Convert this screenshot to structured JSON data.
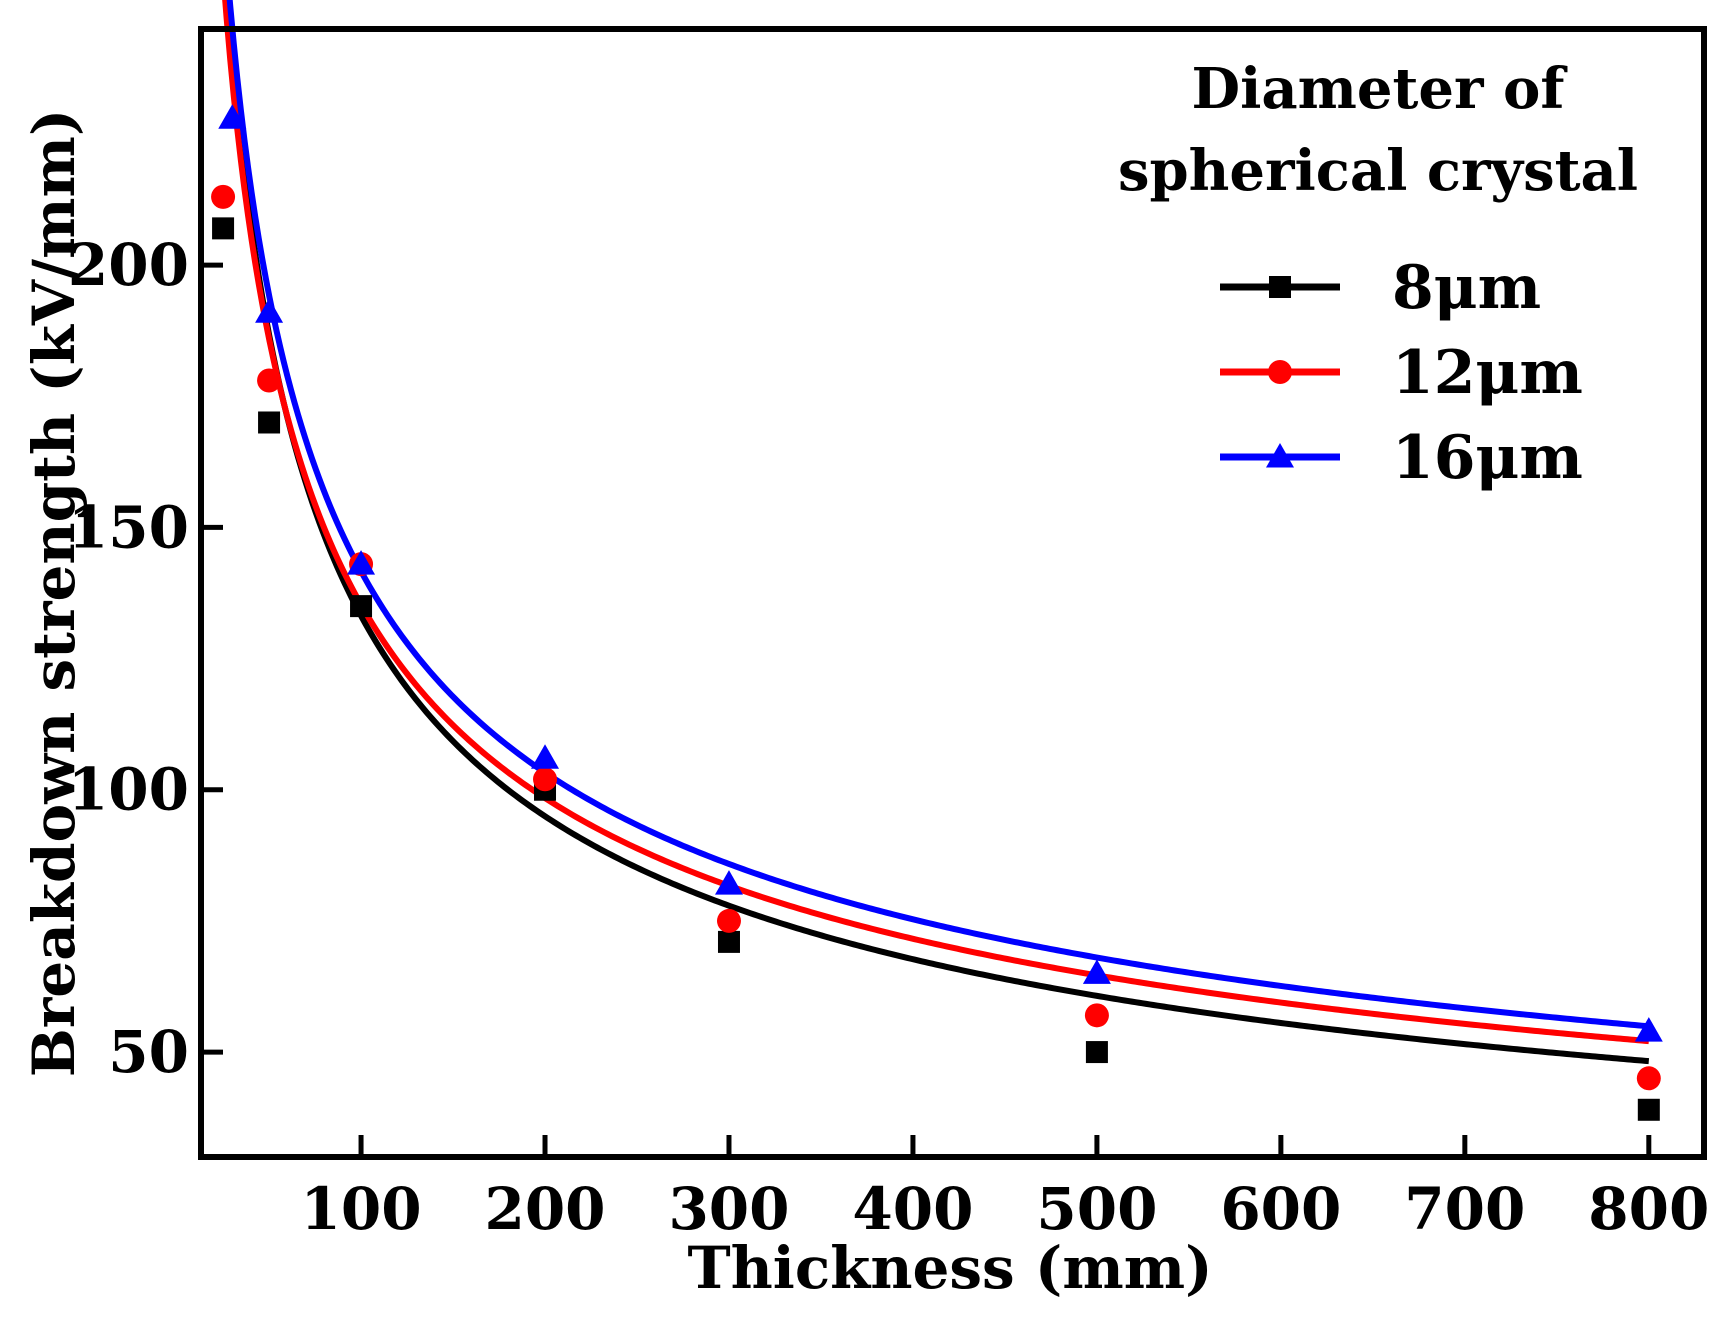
{
  "chart_data": {
    "type": "scatter",
    "xlabel": "Thickness (mm)",
    "ylabel": "Breakdown strength (kV/mm)",
    "xlim": [
      13,
      830
    ],
    "ylim": [
      30,
      245
    ],
    "xticks": [
      100,
      200,
      300,
      400,
      500,
      600,
      700,
      800
    ],
    "yticks": [
      50,
      100,
      150,
      200
    ],
    "legend": {
      "title_line1": "Diameter of",
      "title_line2": "spherical crystal",
      "position": "top-right"
    },
    "fit": {
      "type": "power-law",
      "equation": "y = a * x^b",
      "x_range": [
        25,
        800
      ]
    },
    "series": [
      {
        "name": "8μm",
        "color": "#000000",
        "marker": "square",
        "x": [
          25,
          50,
          100,
          200,
          300,
          500,
          800
        ],
        "y": [
          207,
          170,
          135,
          100,
          71,
          50,
          39
        ],
        "fit_params": {
          "a": 1260,
          "b": -0.488
        }
      },
      {
        "name": "12μm",
        "color": "#ff0000",
        "marker": "circle",
        "x": [
          25,
          50,
          100,
          200,
          300,
          500,
          800
        ],
        "y": [
          213,
          178,
          143,
          102,
          75,
          57,
          45
        ],
        "fit_params": {
          "a": 1120,
          "b": -0.459
        }
      },
      {
        "name": "16μm",
        "color": "#0000ff",
        "marker": "triangle",
        "x": [
          30,
          50,
          100,
          200,
          300,
          500,
          800
        ],
        "y": [
          228,
          191,
          143,
          106,
          82,
          65,
          54
        ],
        "fit_params": {
          "a": 1155,
          "b": -0.4557
        }
      }
    ]
  }
}
